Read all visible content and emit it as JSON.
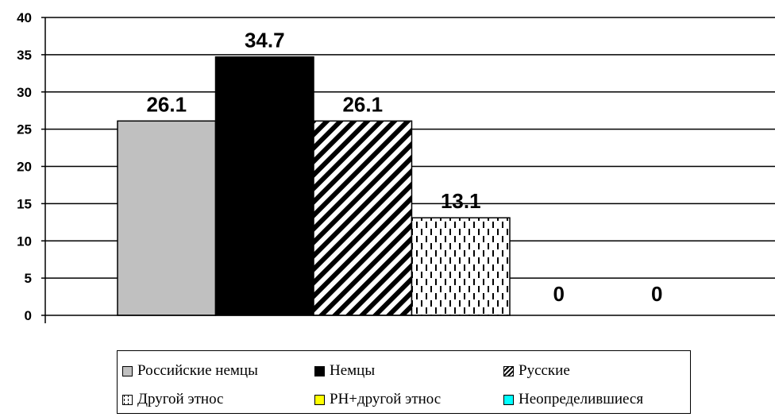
{
  "chart_data": {
    "type": "bar",
    "categories": [
      "Российские немцы",
      "Немцы",
      "Русские",
      "Другой этнос",
      "РН+другой этнос",
      "Неопределившиеся"
    ],
    "values": [
      26.1,
      34.7,
      26.1,
      13.1,
      0,
      0
    ],
    "data_labels": [
      "26.1",
      "34.7",
      "26.1",
      "13.1",
      "0",
      "0"
    ],
    "ylim": [
      0,
      40
    ],
    "yticks": [
      0,
      5,
      10,
      15,
      20,
      25,
      30,
      35,
      40
    ],
    "grid": true,
    "legend_position": "bottom",
    "series_colors": [
      "#c0c0c0",
      "#000000",
      "pattern-diagonal-stripes",
      "pattern-dashed-vertical",
      "#ffff00",
      "#00ffff"
    ]
  },
  "legend": {
    "items": [
      {
        "label": "Российские немцы",
        "color": "#c0c0c0",
        "pattern": "solid"
      },
      {
        "label": "Немцы",
        "color": "#000000",
        "pattern": "solid"
      },
      {
        "label": "Русские",
        "color": "#ffffff",
        "pattern": "diagonal"
      },
      {
        "label": "Другой этнос",
        "color": "#ffffff",
        "pattern": "dashed"
      },
      {
        "label": "РН+другой этнос",
        "color": "#ffff00",
        "pattern": "solid"
      },
      {
        "label": "Неопределившиеся",
        "color": "#00ffff",
        "pattern": "solid"
      }
    ]
  }
}
